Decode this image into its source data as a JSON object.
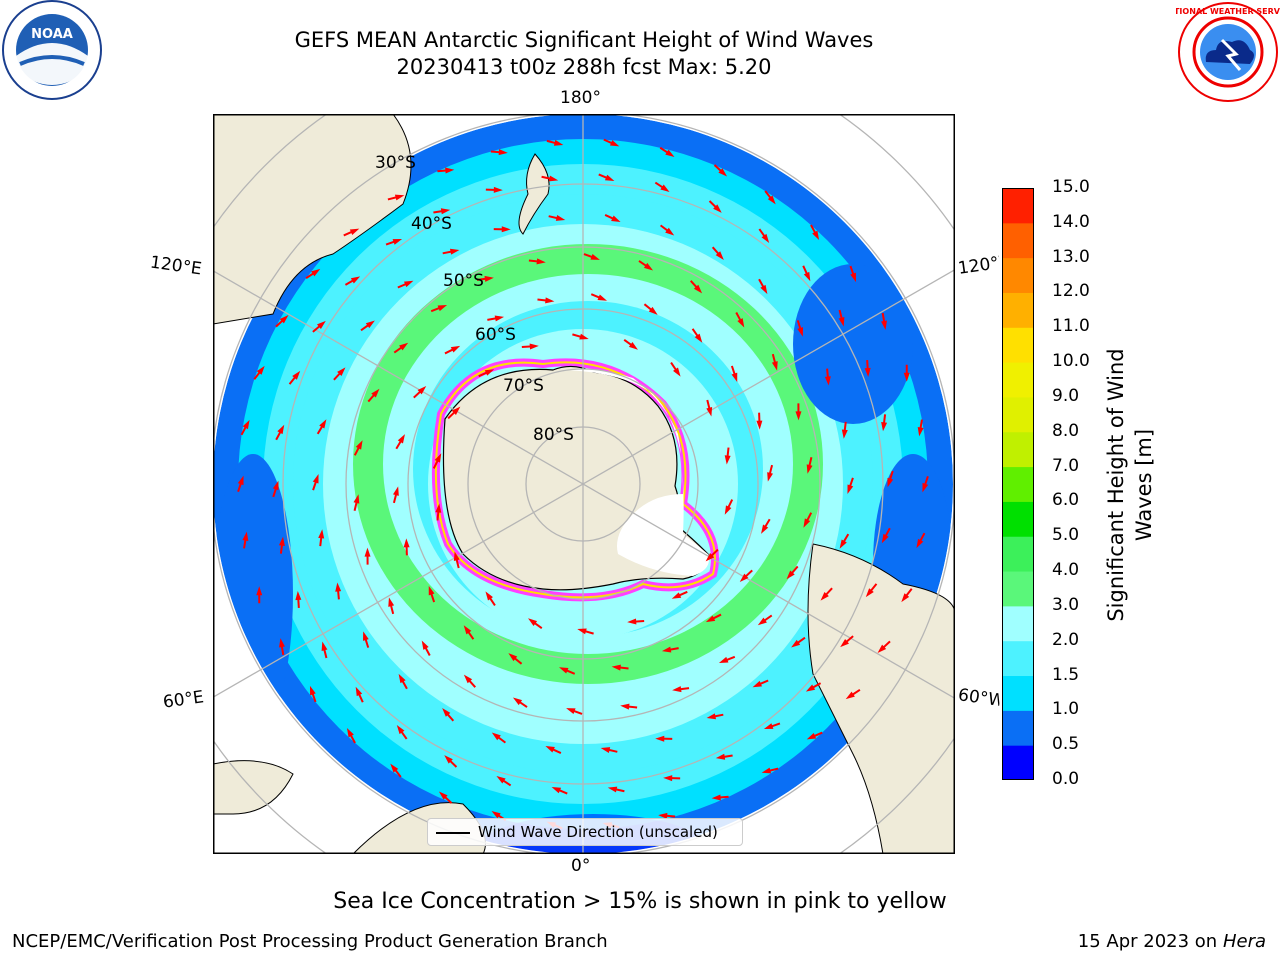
{
  "title": {
    "line1": "GEFS MEAN Antarctic Significant Height of Wind Waves",
    "line2": "20230413 t00z 288h fcst   Max: 5.20"
  },
  "logos": {
    "left": "NOAA",
    "right": "NATIONAL WEATHER SERVICE"
  },
  "map": {
    "projection": "south-polar-stereographic",
    "lon_labels": {
      "top": "180°",
      "bottom": "0°",
      "upper_left": "120°E",
      "lower_left": "60°E",
      "upper_right": "120°W",
      "lower_right": "60°W"
    },
    "lat_labels": [
      "30°S",
      "40°S",
      "50°S",
      "60°S",
      "70°S",
      "80°S"
    ],
    "legend_label": "Wind Wave Direction (unscaled)",
    "colors": {
      "land": "#efebd9",
      "grid": "#b5b5b5",
      "arrow": "#ff0000"
    }
  },
  "colorbar": {
    "label": "Significant Height of Wind Waves [m]",
    "ticks": [
      "0.0",
      "0.5",
      "1.0",
      "1.5",
      "2.0",
      "3.0",
      "4.0",
      "5.0",
      "6.0",
      "7.0",
      "8.0",
      "9.0",
      "10.0",
      "11.0",
      "12.0",
      "13.0",
      "14.0",
      "15.0"
    ],
    "colors": [
      "#0000ff",
      "#0a6ff5",
      "#00e0ff",
      "#4df2ff",
      "#a0ffff",
      "#5af77a",
      "#3cf05a",
      "#00e000",
      "#60ef00",
      "#c0f000",
      "#e0f000",
      "#f0f000",
      "#ffe000",
      "#ffb000",
      "#ff8800",
      "#ff6000",
      "#ff2000"
    ]
  },
  "caption": "Sea Ice Concentration > 15% is shown in pink to yellow",
  "footer": {
    "left": "NCEP/EMC/Verification Post Processing Product Generation Branch",
    "right_date": "15 Apr 2023 on",
    "right_machine": "Hera"
  }
}
